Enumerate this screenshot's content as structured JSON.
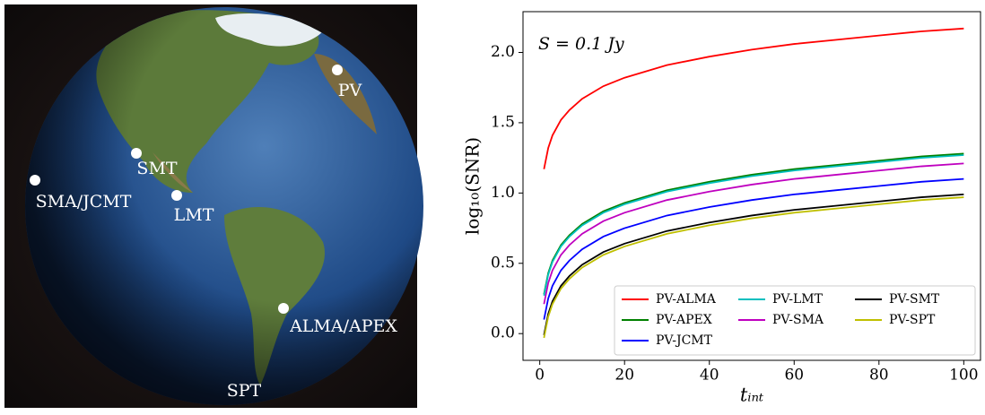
{
  "image_labels": [
    "PV",
    "SMT",
    "SMA/JCMT",
    "LMT",
    "ALMA/APEX",
    "SPT"
  ],
  "chart_data": {
    "type": "line",
    "annotation": "S = 0.1 Jy",
    "xlabel": "tᵢₙₜ",
    "ylabel": "log₁₀(SNR)",
    "x": [
      1,
      2,
      3,
      5,
      7,
      10,
      15,
      20,
      30,
      40,
      50,
      60,
      70,
      80,
      90,
      100
    ],
    "series": [
      {
        "name": "PV-ALMA",
        "color": "#ff0000",
        "values": [
          1.17,
          1.32,
          1.41,
          1.52,
          1.59,
          1.67,
          1.76,
          1.82,
          1.91,
          1.97,
          2.02,
          2.06,
          2.09,
          2.12,
          2.15,
          2.17
        ]
      },
      {
        "name": "PV-APEX",
        "color": "#008000",
        "values": [
          0.28,
          0.43,
          0.52,
          0.63,
          0.7,
          0.78,
          0.87,
          0.93,
          1.02,
          1.08,
          1.13,
          1.17,
          1.2,
          1.23,
          1.26,
          1.28
        ]
      },
      {
        "name": "PV-JCMT",
        "color": "#0000ff",
        "values": [
          0.1,
          0.25,
          0.34,
          0.45,
          0.52,
          0.6,
          0.69,
          0.75,
          0.84,
          0.9,
          0.95,
          0.99,
          1.02,
          1.05,
          1.08,
          1.1
        ]
      },
      {
        "name": "PV-LMT",
        "color": "#00bfbf",
        "values": [
          0.27,
          0.42,
          0.51,
          0.62,
          0.69,
          0.77,
          0.86,
          0.92,
          1.01,
          1.07,
          1.12,
          1.16,
          1.19,
          1.22,
          1.25,
          1.27
        ]
      },
      {
        "name": "PV-SMA",
        "color": "#bf00bf",
        "values": [
          0.21,
          0.36,
          0.45,
          0.56,
          0.63,
          0.71,
          0.8,
          0.86,
          0.95,
          1.01,
          1.06,
          1.1,
          1.13,
          1.16,
          1.19,
          1.21
        ]
      },
      {
        "name": "PV-SMT",
        "color": "#000000",
        "values": [
          -0.01,
          0.14,
          0.23,
          0.34,
          0.41,
          0.49,
          0.58,
          0.64,
          0.73,
          0.79,
          0.84,
          0.88,
          0.91,
          0.94,
          0.97,
          0.99
        ]
      },
      {
        "name": "PV-SPT",
        "color": "#bfbf00",
        "values": [
          -0.03,
          0.12,
          0.21,
          0.32,
          0.39,
          0.47,
          0.56,
          0.62,
          0.71,
          0.77,
          0.82,
          0.86,
          0.89,
          0.92,
          0.95,
          0.97
        ]
      }
    ],
    "xlim": [
      -3.95,
      103.95
    ],
    "xticks": [
      0,
      20,
      40,
      60,
      80,
      100
    ],
    "ylim": [
      -0.19,
      2.29
    ],
    "yticks": [
      {
        "value": 0,
        "label": "0.0"
      },
      0.5,
      {
        "value": 1,
        "label": "1.0"
      },
      1.5,
      {
        "value": 2,
        "label": "2.0"
      }
    ],
    "legend": "lower right",
    "legend_columns": 3
  }
}
